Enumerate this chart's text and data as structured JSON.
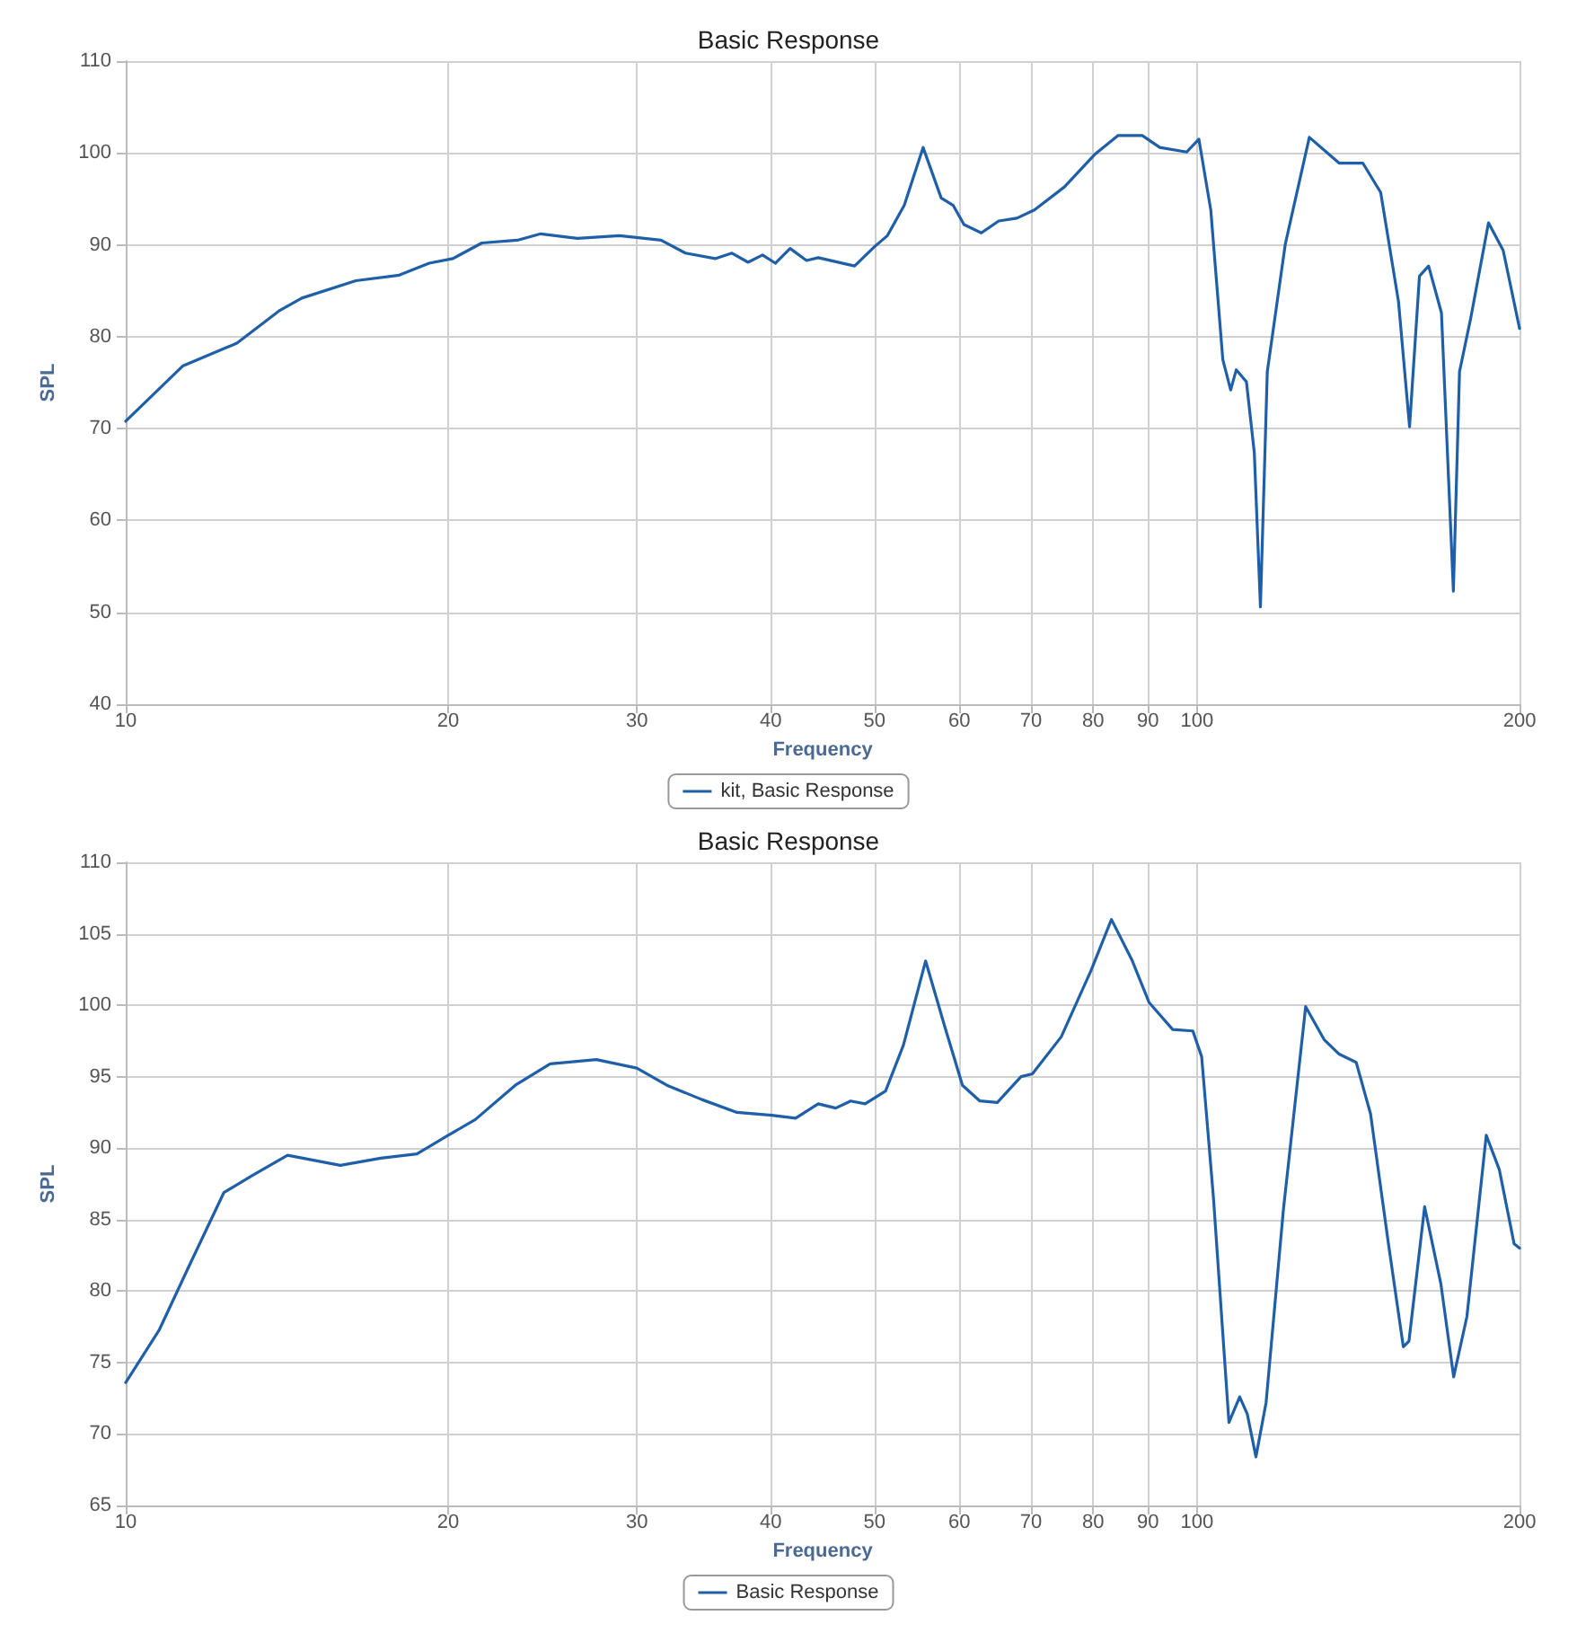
{
  "chart_data": [
    {
      "type": "line",
      "title": "Basic Response",
      "xlabel": "Frequency",
      "ylabel": "SPL",
      "log": "x",
      "grid": true,
      "legend": "bottom",
      "marker": "none",
      "line_style": "solid",
      "xlim": [
        10,
        200
      ],
      "xticks": [
        10,
        20,
        30,
        40,
        50,
        60,
        70,
        80,
        90,
        100,
        200
      ],
      "ylim": [
        40,
        110
      ],
      "yticks": [
        40,
        50,
        60,
        70,
        80,
        90,
        100,
        110
      ],
      "x": [
        10,
        11.3,
        12.7,
        13.9,
        14.6,
        16.4,
        18.0,
        19.2,
        20.2,
        21.5,
        23.2,
        24.4,
        26.4,
        28.9,
        31.6,
        33.3,
        35.5,
        36.8,
        38.1,
        39.3,
        40.4,
        41.7,
        43.2,
        44.3,
        47.9,
        50.0,
        51.4,
        53.3,
        55.5,
        57.7,
        59.2,
        60.6,
        62.9,
        65.3,
        67.9,
        70.5,
        75.2,
        80.2,
        84.4,
        88.9,
        92.3,
        97.8,
        100.4,
        103.0,
        105.7,
        107.5,
        108.8,
        111.2,
        113.1,
        114.6,
        116.3,
        120.9,
        127.3,
        135.7,
        142.8,
        148.4,
        154.2,
        157.9,
        161.3,
        164.5,
        169.1,
        173.5,
        175.8,
        180.0,
        187.1,
        193.1,
        200
      ],
      "series": [
        {
          "name": "kit, Basic Response",
          "color": "#1f5fa8",
          "values": [
            70.8,
            76.8,
            79.3,
            82.8,
            84.2,
            86.1,
            86.7,
            88.0,
            88.5,
            90.2,
            90.5,
            91.2,
            90.7,
            91.0,
            90.5,
            89.1,
            88.5,
            89.1,
            88.1,
            88.9,
            88.0,
            89.6,
            88.3,
            88.6,
            87.7,
            89.8,
            91.0,
            94.3,
            100.6,
            95.1,
            94.3,
            92.2,
            91.3,
            92.6,
            92.9,
            93.8,
            96.3,
            99.8,
            101.9,
            101.9,
            100.6,
            100.1,
            101.5,
            93.8,
            77.5,
            74.2,
            76.4,
            75.1,
            67.4,
            50.6,
            76.2,
            90.1,
            101.7,
            98.9,
            98.9,
            95.7,
            83.8,
            70.2,
            86.6,
            87.7,
            82.6,
            52.3,
            76.2,
            81.9,
            92.4,
            89.4,
            80.9
          ]
        }
      ]
    },
    {
      "type": "line",
      "title": "Basic Response",
      "xlabel": "Frequency",
      "ylabel": "SPL",
      "log": "x",
      "grid": true,
      "legend": "bottom",
      "marker": "none",
      "line_style": "solid",
      "xlim": [
        10,
        200
      ],
      "xticks": [
        10,
        20,
        30,
        40,
        50,
        60,
        70,
        80,
        90,
        100,
        200
      ],
      "ylim": [
        65,
        110
      ],
      "yticks": [
        65,
        70,
        75,
        80,
        85,
        90,
        95,
        100,
        105,
        110
      ],
      "x": [
        10,
        10.75,
        11.45,
        12.35,
        13.14,
        14.16,
        15.86,
        17.3,
        18.7,
        20,
        21.2,
        23.1,
        24.9,
        27.5,
        30,
        32.0,
        34.5,
        37.2,
        40.1,
        42.2,
        44.3,
        46.0,
        47.5,
        49.0,
        51.2,
        53.2,
        55.8,
        58.2,
        60.4,
        62.7,
        65.1,
        68.5,
        70.2,
        74.7,
        79.6,
        83.2,
        86.9,
        90.2,
        94.9,
        99.1,
        101.0,
        103.6,
        107.1,
        109.6,
        111.4,
        113.5,
        116.0,
        120.4,
        126.3,
        131.4,
        135.6,
        140.8,
        145.2,
        150.9,
        155.8,
        157.7,
        163.1,
        168.9,
        173.6,
        178.6,
        186.2,
        191.5,
        197.7,
        200
      ],
      "series": [
        {
          "name": "Basic Response",
          "color": "#1f5fa8",
          "values": [
            73.6,
            77.3,
            81.7,
            86.9,
            88.1,
            89.5,
            88.8,
            89.3,
            89.6,
            90.9,
            92.0,
            94.4,
            95.9,
            96.2,
            95.6,
            94.4,
            93.4,
            92.5,
            92.3,
            92.1,
            93.1,
            92.8,
            93.3,
            93.1,
            94.0,
            97.2,
            103.1,
            98.4,
            94.4,
            93.3,
            93.2,
            95.0,
            95.2,
            97.8,
            102.4,
            106.0,
            103.2,
            100.2,
            98.3,
            98.2,
            96.4,
            86.5,
            70.8,
            72.6,
            71.4,
            68.4,
            72.2,
            85.7,
            99.9,
            97.6,
            96.6,
            96.0,
            92.4,
            83.3,
            76.1,
            76.5,
            85.9,
            80.5,
            74.0,
            78.2,
            90.9,
            88.5,
            83.3,
            83.0
          ]
        }
      ]
    }
  ]
}
